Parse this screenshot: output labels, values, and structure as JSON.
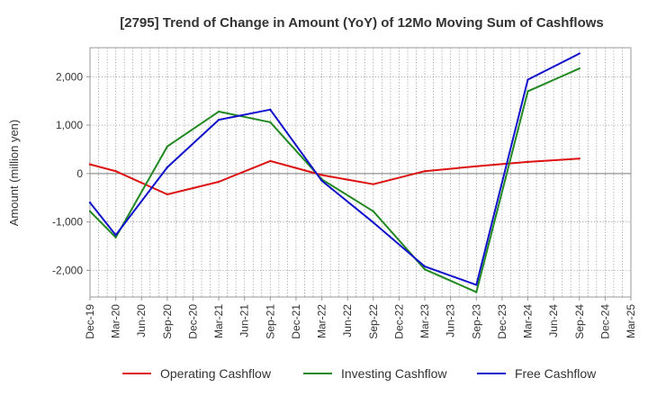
{
  "chart_data": {
    "type": "line",
    "title": "[2795]  Trend of Change in Amount (YoY) of 12Mo Moving Sum of Cashflows",
    "xlabel": "",
    "ylabel": "Amount (million yen)",
    "categories": [
      "Dec-19",
      "Mar-20",
      "Jun-20",
      "Sep-20",
      "Dec-20",
      "Mar-21",
      "Jun-21",
      "Sep-21",
      "Dec-21",
      "Mar-22",
      "Jun-22",
      "Sep-22",
      "Dec-22",
      "Mar-23",
      "Jun-23",
      "Sep-23",
      "Dec-23",
      "Mar-24",
      "Jun-24",
      "Sep-24",
      "Dec-24",
      "Mar-25"
    ],
    "ylim": [
      -2550,
      2600
    ],
    "yticks": [
      -2000,
      -1000,
      0,
      1000,
      2000
    ],
    "ytick_labels": [
      "-2,000",
      "-1,000",
      "0",
      "1,000",
      "2,000"
    ],
    "grid": true,
    "legend_position": "bottom",
    "series": [
      {
        "name": "Operating Cashflow",
        "color": "#dd1111",
        "values": [
          190,
          50,
          null,
          -430,
          null,
          -170,
          null,
          260,
          null,
          -30,
          null,
          -220,
          null,
          50,
          null,
          150,
          null,
          240,
          null,
          310,
          null,
          null
        ]
      },
      {
        "name": "Investing Cashflow",
        "color": "#228822",
        "values": [
          -780,
          -1320,
          null,
          560,
          null,
          1280,
          null,
          1060,
          null,
          -120,
          null,
          -780,
          null,
          -1980,
          null,
          -2450,
          null,
          1700,
          null,
          2170,
          null,
          null
        ]
      },
      {
        "name": "Free Cashflow",
        "color": "#1111cc",
        "values": [
          -600,
          -1270,
          null,
          130,
          null,
          1110,
          null,
          1320,
          null,
          -150,
          null,
          -1010,
          null,
          -1920,
          null,
          -2300,
          null,
          1940,
          null,
          2480,
          null,
          null
        ]
      }
    ]
  }
}
